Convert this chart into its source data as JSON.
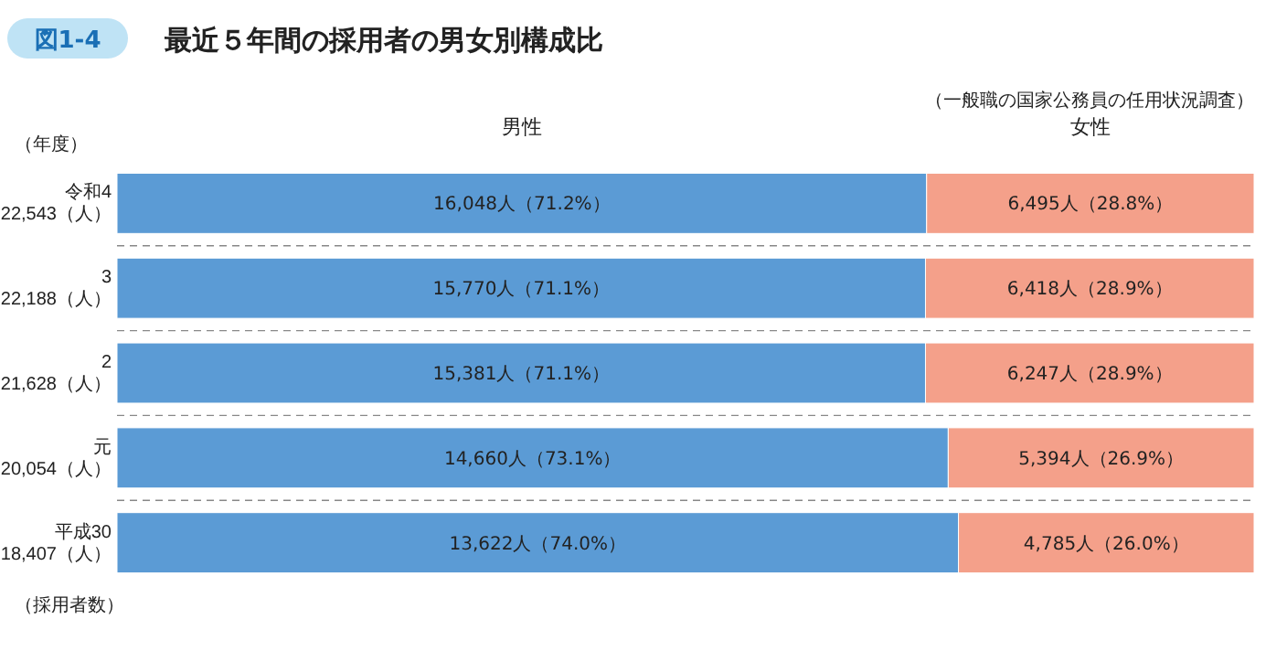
{
  "chart_data": {
    "type": "bar",
    "orientation": "horizontal",
    "stacked": true,
    "title": "最近５年間の採用者の男女別構成比",
    "ylabel": "（年度）",
    "annotations": [
      "図1-4",
      "（一般職の国家公務員の任用状況調査）",
      "（採用者数）"
    ],
    "categories": [
      "令和4\n22,543（人）",
      "3\n22,188（人）",
      "2\n21,628（人）",
      "元\n20,054（人）",
      "平成30\n18,407（人）"
    ],
    "series": [
      {
        "name": "男性",
        "color": "#5b9bd5",
        "values": [
          71.2,
          71.1,
          71.1,
          73.1,
          74.0
        ],
        "value_labels": [
          "16,048人（71.2%）",
          "15,770人（71.1%）",
          "15,381人（71.1%）",
          "14,660人（73.1%）",
          "13,622人（74.0%）"
        ]
      },
      {
        "name": "女性",
        "color": "#f4a08a",
        "values": [
          28.8,
          28.9,
          28.9,
          26.9,
          26.0
        ],
        "value_labels": [
          "6,495人（28.8%）",
          "6,418人（28.9%）",
          "6,247人（28.9%）",
          "5,394人（26.9%）",
          "4,785人（26.0%）"
        ]
      }
    ]
  }
}
